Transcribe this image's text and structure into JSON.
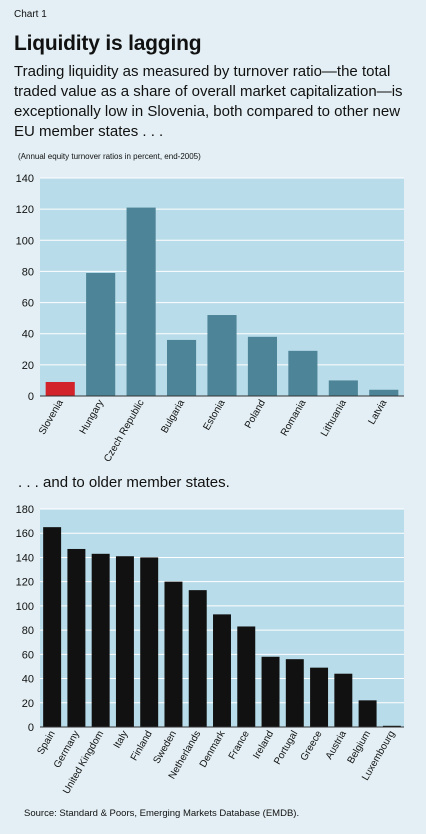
{
  "header": {
    "chart_number": "Chart 1",
    "title": "Liquidity is lagging",
    "subtitle": "Trading liquidity as measured by turnover ratio—the total traded value as a share of overall market capitalization—is exceptionally low in Slovenia, both compared to other new EU member states . . .",
    "note": "(Annual equity turnover ratios in percent, end-2005)"
  },
  "section2_label": ". . . and to older member states.",
  "source": "Source: Standard & Poors, Emerging Markets Database (EMDB).",
  "colors": {
    "background": "#e3eff4",
    "plot_background": "#b8dce9",
    "highlight_bar": "#d2232a",
    "new_members_bar": "#4d8497",
    "old_members_bar": "#111111"
  },
  "chart_data": [
    {
      "type": "bar",
      "categories": [
        "Slovenia",
        "Hungary",
        "Czech Republic",
        "Bulgaria",
        "Estonia",
        "Poland",
        "Romania",
        "Lithuania",
        "Latvia"
      ],
      "values": [
        9,
        79,
        121,
        36,
        52,
        38,
        29,
        10,
        4
      ],
      "highlight": "Slovenia",
      "ylim": [
        0,
        140
      ],
      "yticks": [
        0,
        20,
        40,
        60,
        80,
        100,
        120,
        140
      ],
      "grid": true
    },
    {
      "type": "bar",
      "categories": [
        "Spain",
        "Germany",
        "United Kingdom",
        "Italy",
        "Finland",
        "Sweden",
        "Netherlands",
        "Denmark",
        "France",
        "Ireland",
        "Portugal",
        "Greece",
        "Austria",
        "Belgium",
        "Luxembourg"
      ],
      "values": [
        165,
        147,
        143,
        141,
        140,
        120,
        113,
        93,
        83,
        58,
        56,
        49,
        44,
        22,
        1
      ],
      "ylim": [
        0,
        180
      ],
      "yticks": [
        0,
        20,
        40,
        60,
        80,
        100,
        120,
        140,
        160,
        180
      ],
      "grid": true
    }
  ]
}
